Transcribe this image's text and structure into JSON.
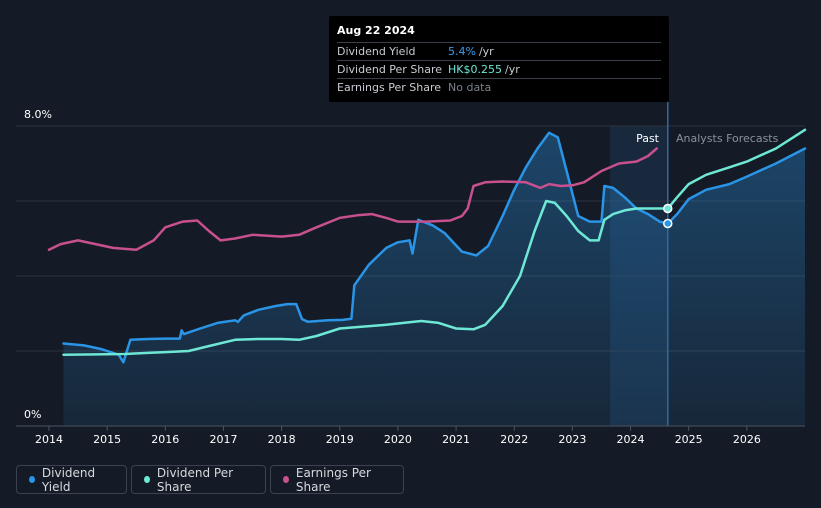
{
  "tooltip": {
    "date": "Aug 22 2024",
    "rows": [
      {
        "label": "Dividend Yield",
        "value": "5.4%",
        "unit": "/yr",
        "color": "#3d9be9"
      },
      {
        "label": "Dividend Per Share",
        "value": "HK$0.255",
        "unit": "/yr",
        "color": "#6ee8d5"
      },
      {
        "label": "Earnings Per Share",
        "value": "No data",
        "unit": "",
        "color": "#7c828c"
      }
    ]
  },
  "region_labels": {
    "past": "Past",
    "forecast": "Analysts Forecasts"
  },
  "legend": [
    {
      "label": "Dividend Yield",
      "color": "#2a95e6"
    },
    {
      "label": "Dividend Per Share",
      "color": "#6ee8d5"
    },
    {
      "label": "Earnings Per Share",
      "color": "#c8508e"
    }
  ],
  "chart_data": {
    "type": "line",
    "y_axis_labels": [
      "8.0%",
      "0%"
    ],
    "ylim": [
      0,
      8
    ],
    "xlim": [
      2014.0,
      2027.0
    ],
    "x_ticks": [
      "2014",
      "2015",
      "2016",
      "2017",
      "2018",
      "2019",
      "2020",
      "2021",
      "2022",
      "2023",
      "2024",
      "2025",
      "2026"
    ],
    "cursor_x": 2024.64,
    "forecast_start": 2024.64,
    "past_shade_start": 2023.65,
    "series": [
      {
        "name": "Dividend Yield",
        "color": "#2a95e6",
        "filled": true,
        "points": [
          [
            2014.25,
            2.2
          ],
          [
            2014.6,
            2.15
          ],
          [
            2014.9,
            2.05
          ],
          [
            2015.2,
            1.9
          ],
          [
            2015.28,
            1.7
          ],
          [
            2015.4,
            2.3
          ],
          [
            2015.7,
            2.32
          ],
          [
            2016.0,
            2.33
          ],
          [
            2016.25,
            2.33
          ],
          [
            2016.28,
            2.55
          ],
          [
            2016.32,
            2.45
          ],
          [
            2016.6,
            2.6
          ],
          [
            2016.9,
            2.75
          ],
          [
            2017.2,
            2.82
          ],
          [
            2017.25,
            2.78
          ],
          [
            2017.35,
            2.95
          ],
          [
            2017.6,
            3.1
          ],
          [
            2017.9,
            3.2
          ],
          [
            2018.1,
            3.25
          ],
          [
            2018.25,
            3.25
          ],
          [
            2018.35,
            2.85
          ],
          [
            2018.45,
            2.78
          ],
          [
            2018.8,
            2.82
          ],
          [
            2019.05,
            2.83
          ],
          [
            2019.2,
            2.86
          ],
          [
            2019.25,
            3.75
          ],
          [
            2019.5,
            4.3
          ],
          [
            2019.8,
            4.75
          ],
          [
            2020.0,
            4.9
          ],
          [
            2020.2,
            4.95
          ],
          [
            2020.25,
            4.6
          ],
          [
            2020.35,
            5.5
          ],
          [
            2020.6,
            5.35
          ],
          [
            2020.8,
            5.15
          ],
          [
            2021.1,
            4.65
          ],
          [
            2021.35,
            4.55
          ],
          [
            2021.55,
            4.8
          ],
          [
            2021.8,
            5.6
          ],
          [
            2022.0,
            6.3
          ],
          [
            2022.2,
            6.9
          ],
          [
            2022.4,
            7.4
          ],
          [
            2022.6,
            7.82
          ],
          [
            2022.75,
            7.7
          ],
          [
            2022.9,
            6.8
          ],
          [
            2023.1,
            5.6
          ],
          [
            2023.3,
            5.45
          ],
          [
            2023.5,
            5.45
          ],
          [
            2023.55,
            6.4
          ],
          [
            2023.7,
            6.35
          ],
          [
            2023.9,
            6.1
          ],
          [
            2024.1,
            5.8
          ],
          [
            2024.3,
            5.65
          ],
          [
            2024.5,
            5.45
          ],
          [
            2024.64,
            5.4
          ],
          [
            2024.8,
            5.65
          ],
          [
            2025.0,
            6.05
          ],
          [
            2025.3,
            6.3
          ],
          [
            2025.7,
            6.45
          ],
          [
            2026.0,
            6.65
          ],
          [
            2026.5,
            7.0
          ],
          [
            2027.0,
            7.4
          ]
        ]
      },
      {
        "name": "Dividend Per Share",
        "color": "#6ee8d5",
        "filled": false,
        "points": [
          [
            2014.25,
            1.9
          ],
          [
            2014.8,
            1.91
          ],
          [
            2015.3,
            1.92
          ],
          [
            2015.7,
            1.95
          ],
          [
            2016.0,
            1.97
          ],
          [
            2016.4,
            2.0
          ],
          [
            2016.8,
            2.15
          ],
          [
            2017.2,
            2.3
          ],
          [
            2017.6,
            2.32
          ],
          [
            2018.0,
            2.32
          ],
          [
            2018.3,
            2.3
          ],
          [
            2018.6,
            2.4
          ],
          [
            2019.0,
            2.6
          ],
          [
            2019.4,
            2.65
          ],
          [
            2019.8,
            2.7
          ],
          [
            2020.1,
            2.75
          ],
          [
            2020.4,
            2.8
          ],
          [
            2020.7,
            2.75
          ],
          [
            2021.0,
            2.6
          ],
          [
            2021.3,
            2.58
          ],
          [
            2021.5,
            2.7
          ],
          [
            2021.8,
            3.2
          ],
          [
            2022.1,
            4.0
          ],
          [
            2022.35,
            5.2
          ],
          [
            2022.55,
            6.0
          ],
          [
            2022.7,
            5.95
          ],
          [
            2022.9,
            5.6
          ],
          [
            2023.1,
            5.2
          ],
          [
            2023.3,
            4.95
          ],
          [
            2023.45,
            4.95
          ],
          [
            2023.55,
            5.5
          ],
          [
            2023.7,
            5.65
          ],
          [
            2023.9,
            5.75
          ],
          [
            2024.1,
            5.8
          ],
          [
            2024.4,
            5.8
          ],
          [
            2024.64,
            5.8
          ],
          [
            2024.8,
            6.1
          ],
          [
            2025.0,
            6.45
          ],
          [
            2025.3,
            6.7
          ],
          [
            2025.7,
            6.9
          ],
          [
            2026.0,
            7.05
          ],
          [
            2026.5,
            7.4
          ],
          [
            2027.0,
            7.9
          ]
        ]
      },
      {
        "name": "Earnings Per Share",
        "color": "#c8508e",
        "filled": false,
        "points": [
          [
            2014.0,
            4.7
          ],
          [
            2014.2,
            4.85
          ],
          [
            2014.5,
            4.95
          ],
          [
            2014.8,
            4.85
          ],
          [
            2015.1,
            4.75
          ],
          [
            2015.5,
            4.7
          ],
          [
            2015.8,
            4.95
          ],
          [
            2016.0,
            5.3
          ],
          [
            2016.3,
            5.45
          ],
          [
            2016.55,
            5.48
          ],
          [
            2016.75,
            5.2
          ],
          [
            2016.95,
            4.95
          ],
          [
            2017.2,
            5.0
          ],
          [
            2017.5,
            5.1
          ],
          [
            2018.0,
            5.05
          ],
          [
            2018.3,
            5.1
          ],
          [
            2018.6,
            5.3
          ],
          [
            2019.0,
            5.55
          ],
          [
            2019.3,
            5.62
          ],
          [
            2019.55,
            5.65
          ],
          [
            2019.8,
            5.55
          ],
          [
            2020.0,
            5.45
          ],
          [
            2020.5,
            5.45
          ],
          [
            2020.9,
            5.48
          ],
          [
            2021.1,
            5.6
          ],
          [
            2021.2,
            5.8
          ],
          [
            2021.3,
            6.4
          ],
          [
            2021.5,
            6.5
          ],
          [
            2021.8,
            6.52
          ],
          [
            2022.2,
            6.5
          ],
          [
            2022.45,
            6.35
          ],
          [
            2022.6,
            6.45
          ],
          [
            2022.8,
            6.4
          ],
          [
            2023.0,
            6.42
          ],
          [
            2023.2,
            6.5
          ],
          [
            2023.5,
            6.8
          ],
          [
            2023.8,
            7.0
          ],
          [
            2024.1,
            7.05
          ],
          [
            2024.3,
            7.2
          ],
          [
            2024.45,
            7.4
          ]
        ]
      }
    ]
  }
}
